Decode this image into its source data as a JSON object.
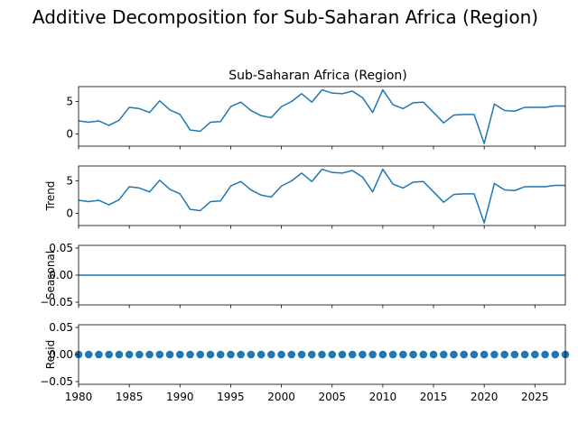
{
  "figure_title": "Additive Decomposition for Sub-Saharan Africa (Region)",
  "colors": {
    "line": "#1f77b4",
    "axis": "#000000"
  },
  "chart_data": [
    {
      "type": "line",
      "panel": "observed",
      "title": "Sub-Saharan Africa (Region)",
      "ylabel": "",
      "x": [
        1980,
        1981,
        1982,
        1983,
        1984,
        1985,
        1986,
        1987,
        1988,
        1989,
        1990,
        1991,
        1992,
        1993,
        1994,
        1995,
        1996,
        1997,
        1998,
        1999,
        2000,
        2001,
        2002,
        2003,
        2004,
        2005,
        2006,
        2007,
        2008,
        2009,
        2010,
        2011,
        2012,
        2013,
        2014,
        2015,
        2016,
        2017,
        2018,
        2019,
        2020,
        2021,
        2022,
        2023,
        2024,
        2025,
        2026,
        2027,
        2028
      ],
      "values": [
        2.0,
        1.8,
        2.0,
        1.3,
        2.1,
        4.1,
        3.9,
        3.3,
        5.1,
        3.7,
        3.0,
        0.6,
        0.4,
        1.8,
        1.9,
        4.2,
        4.9,
        3.6,
        2.8,
        2.5,
        4.2,
        5.0,
        6.2,
        4.9,
        6.8,
        6.3,
        6.2,
        6.6,
        5.6,
        3.3,
        6.8,
        4.5,
        3.9,
        4.8,
        4.9,
        3.3,
        1.7,
        2.9,
        3.0,
        3.0,
        -1.5,
        4.6,
        3.6,
        3.5,
        4.1,
        4.1,
        4.1,
        4.3,
        4.3
      ],
      "xlim": [
        1980,
        2028
      ],
      "ylim": [
        -1.9,
        7.3
      ],
      "yticks": [
        0,
        5
      ],
      "ytick_labels": [
        "0",
        "5"
      ]
    },
    {
      "type": "line",
      "panel": "trend",
      "title": "",
      "ylabel": "Trend",
      "x": [
        1980,
        1981,
        1982,
        1983,
        1984,
        1985,
        1986,
        1987,
        1988,
        1989,
        1990,
        1991,
        1992,
        1993,
        1994,
        1995,
        1996,
        1997,
        1998,
        1999,
        2000,
        2001,
        2002,
        2003,
        2004,
        2005,
        2006,
        2007,
        2008,
        2009,
        2010,
        2011,
        2012,
        2013,
        2014,
        2015,
        2016,
        2017,
        2018,
        2019,
        2020,
        2021,
        2022,
        2023,
        2024,
        2025,
        2026,
        2027,
        2028
      ],
      "values": [
        2.0,
        1.8,
        2.0,
        1.3,
        2.1,
        4.1,
        3.9,
        3.3,
        5.1,
        3.7,
        3.0,
        0.6,
        0.4,
        1.8,
        1.9,
        4.2,
        4.9,
        3.6,
        2.8,
        2.5,
        4.2,
        5.0,
        6.2,
        4.9,
        6.8,
        6.3,
        6.2,
        6.6,
        5.6,
        3.3,
        6.8,
        4.5,
        3.9,
        4.8,
        4.9,
        3.3,
        1.7,
        2.9,
        3.0,
        3.0,
        -1.5,
        4.6,
        3.6,
        3.5,
        4.1,
        4.1,
        4.1,
        4.3,
        4.3
      ],
      "xlim": [
        1980,
        2028
      ],
      "ylim": [
        -1.9,
        7.3
      ],
      "yticks": [
        0,
        5
      ],
      "ytick_labels": [
        "0",
        "5"
      ]
    },
    {
      "type": "line",
      "panel": "seasonal",
      "title": "",
      "ylabel": "Seasonal",
      "x": [
        1980,
        2028
      ],
      "values": [
        0.0,
        0.0
      ],
      "xlim": [
        1980,
        2028
      ],
      "ylim": [
        -0.055,
        0.055
      ],
      "yticks": [
        -0.05,
        0,
        0.05
      ],
      "ytick_labels": [
        "−0.05",
        "0.00",
        "0.05"
      ]
    },
    {
      "type": "scatter",
      "panel": "resid",
      "title": "",
      "ylabel": "Resid",
      "x": [
        1980,
        1981,
        1982,
        1983,
        1984,
        1985,
        1986,
        1987,
        1988,
        1989,
        1990,
        1991,
        1992,
        1993,
        1994,
        1995,
        1996,
        1997,
        1998,
        1999,
        2000,
        2001,
        2002,
        2003,
        2004,
        2005,
        2006,
        2007,
        2008,
        2009,
        2010,
        2011,
        2012,
        2013,
        2014,
        2015,
        2016,
        2017,
        2018,
        2019,
        2020,
        2021,
        2022,
        2023,
        2024,
        2025,
        2026,
        2027,
        2028
      ],
      "values": [
        0,
        0,
        0,
        0,
        0,
        0,
        0,
        0,
        0,
        0,
        0,
        0,
        0,
        0,
        0,
        0,
        0,
        0,
        0,
        0,
        0,
        0,
        0,
        0,
        0,
        0,
        0,
        0,
        0,
        0,
        0,
        0,
        0,
        0,
        0,
        0,
        0,
        0,
        0,
        0,
        0,
        0,
        0,
        0,
        0,
        0,
        0,
        0,
        0
      ],
      "xlim": [
        1980,
        2028
      ],
      "ylim": [
        -0.055,
        0.055
      ],
      "yticks": [
        -0.05,
        0,
        0.05
      ],
      "ytick_labels": [
        "−0.05",
        "0.00",
        "0.05"
      ],
      "xticks": [
        1980,
        1985,
        1990,
        1995,
        2000,
        2005,
        2010,
        2015,
        2020,
        2025
      ],
      "xtick_labels": [
        "1980",
        "1985",
        "1990",
        "1995",
        "2000",
        "2005",
        "2010",
        "2015",
        "2020",
        "2025"
      ]
    }
  ]
}
